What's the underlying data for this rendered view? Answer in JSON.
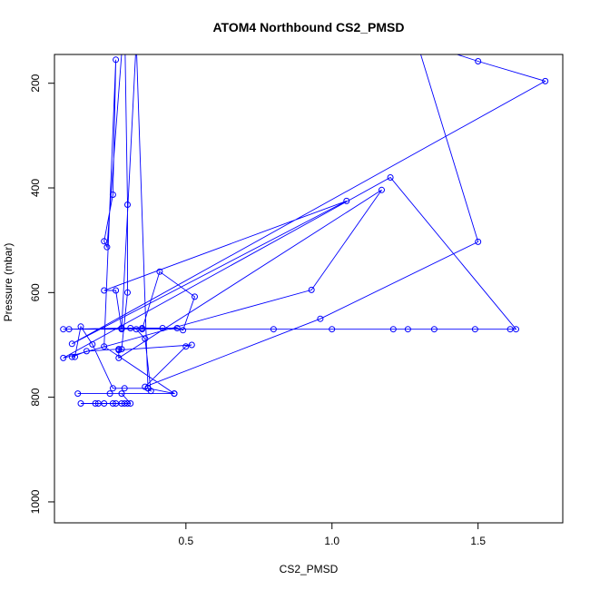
{
  "chart_data": {
    "type": "line",
    "title": "ATOM4 Northbound CS2_PMSD",
    "xlabel": "CS2_PMSD",
    "ylabel": "Pressure (mbar)",
    "xlim": [
      0.05,
      1.79
    ],
    "ylim": [
      1040,
      145
    ],
    "y_reversed": true,
    "x_ticks": [
      0.5,
      1.0,
      1.5
    ],
    "x_tick_labels": [
      "0.5",
      "1.0",
      "1.5"
    ],
    "y_ticks": [
      200,
      400,
      600,
      800,
      1000
    ],
    "y_tick_labels": [
      "200",
      "400",
      "600",
      "800",
      "1000"
    ],
    "grid": false,
    "legend": "none",
    "series_color": "#0000ff",
    "series": [
      {
        "points": [
          [
            0.3,
            812
          ],
          [
            0.29,
            812
          ],
          [
            0.25,
            812
          ],
          [
            0.22,
            812
          ],
          [
            0.19,
            812
          ],
          [
            0.2,
            812
          ],
          [
            0.14,
            812
          ],
          [
            0.26,
            812
          ],
          [
            0.28,
            812
          ],
          [
            0.31,
            812
          ],
          [
            0.28,
            793
          ],
          [
            0.24,
            793
          ],
          [
            0.13,
            793
          ],
          [
            0.46,
            793
          ],
          [
            0.22,
            703
          ],
          [
            0.26,
            155
          ],
          [
            0.25,
            413
          ],
          [
            0.22,
            502
          ],
          [
            0.23,
            513
          ],
          [
            0.29,
            70
          ],
          [
            0.3,
            432
          ],
          [
            0.3,
            600
          ],
          [
            0.28,
            708
          ],
          [
            0.27,
            708
          ],
          [
            0.16,
            712
          ],
          [
            0.11,
            723
          ],
          [
            0.12,
            723
          ],
          [
            0.14,
            665
          ],
          [
            0.18,
            699
          ],
          [
            0.25,
            783
          ],
          [
            0.29,
            783
          ],
          [
            0.37,
            783
          ],
          [
            0.38,
            788
          ],
          [
            0.36,
            688
          ],
          [
            0.33,
            670
          ],
          [
            0.35,
            670
          ],
          [
            0.41,
            560
          ],
          [
            0.53,
            608
          ],
          [
            0.49,
            672
          ],
          [
            0.47,
            668
          ],
          [
            0.42,
            668
          ],
          [
            0.35,
            668
          ],
          [
            0.31,
            668
          ],
          [
            0.28,
            668
          ],
          [
            0.1,
            670
          ],
          [
            0.08,
            670
          ],
          [
            0.8,
            670
          ],
          [
            1.0,
            670
          ],
          [
            1.21,
            670
          ],
          [
            1.26,
            670
          ],
          [
            1.35,
            670
          ],
          [
            1.49,
            670
          ],
          [
            1.61,
            670
          ],
          [
            1.63,
            670
          ],
          [
            1.2,
            380
          ],
          [
            0.08,
            725
          ],
          [
            0.93,
            595
          ],
          [
            1.17,
            404
          ],
          [
            0.27,
            725
          ],
          [
            0.27,
            710
          ],
          [
            0.52,
            700
          ],
          [
            0.5,
            703
          ],
          [
            0.36,
            780
          ],
          [
            0.96,
            650
          ],
          [
            1.5,
            503
          ],
          [
            1.29,
            120
          ],
          [
            1.5,
            158
          ],
          [
            1.73,
            196
          ],
          [
            0.11,
            698
          ],
          [
            1.05,
            425
          ],
          [
            0.22,
            596
          ],
          [
            0.26,
            596
          ],
          [
            0.28,
            670
          ],
          [
            0.33,
            120
          ],
          [
            0.37,
            783
          ],
          [
            0.46,
            793
          ]
        ]
      }
    ]
  }
}
